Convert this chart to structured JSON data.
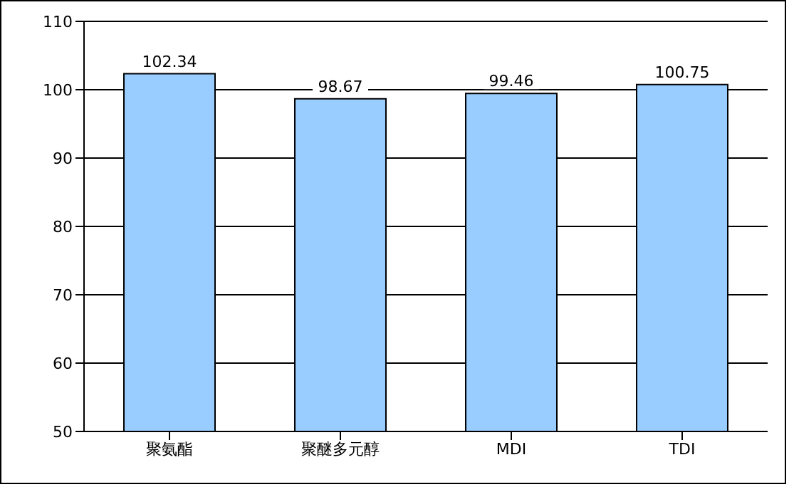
{
  "chart_data": {
    "type": "bar",
    "categories": [
      "聚氨酯",
      "聚醚多元醇",
      "MDI",
      "TDI"
    ],
    "values": [
      102.34,
      98.67,
      99.46,
      100.75
    ],
    "color": "#99ccff",
    "ylim": [
      50,
      110
    ],
    "yticks": [
      50,
      60,
      70,
      80,
      90,
      100,
      110
    ],
    "grid": "y",
    "data_labels": true
  }
}
